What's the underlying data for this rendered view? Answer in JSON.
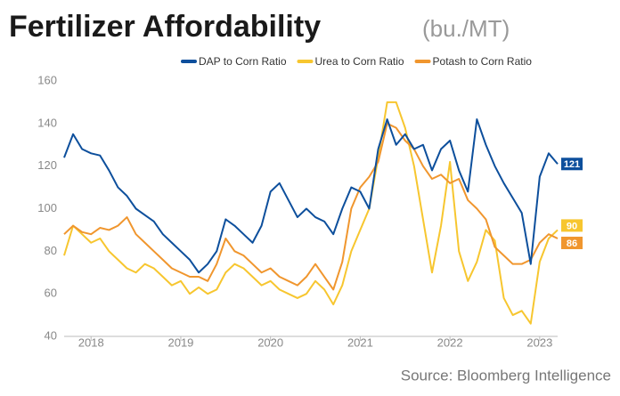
{
  "chart_data": {
    "type": "line",
    "title": "Fertilizer Affordability",
    "subtitle": "(bu./MT)",
    "source": "Source: Bloomberg Intelligence",
    "x": [
      2017.7,
      2017.8,
      2017.9,
      2018.0,
      2018.1,
      2018.2,
      2018.3,
      2018.4,
      2018.5,
      2018.6,
      2018.7,
      2018.8,
      2018.9,
      2019.0,
      2019.1,
      2019.2,
      2019.3,
      2019.4,
      2019.5,
      2019.6,
      2019.7,
      2019.8,
      2019.9,
      2020.0,
      2020.1,
      2020.2,
      2020.3,
      2020.4,
      2020.5,
      2020.6,
      2020.7,
      2020.8,
      2020.9,
      2021.0,
      2021.1,
      2021.2,
      2021.3,
      2021.4,
      2021.5,
      2021.6,
      2021.7,
      2021.8,
      2021.9,
      2022.0,
      2022.1,
      2022.2,
      2022.3,
      2022.4,
      2022.5,
      2022.6,
      2022.7,
      2022.8,
      2022.9,
      2023.0,
      2023.1,
      2023.2
    ],
    "series": [
      {
        "name": "DAP to Corn Ratio",
        "color": "#0d4f9c",
        "values": [
          124,
          135,
          128,
          126,
          125,
          118,
          110,
          106,
          100,
          97,
          94,
          88,
          84,
          80,
          76,
          70,
          74,
          80,
          95,
          92,
          88,
          84,
          92,
          108,
          112,
          104,
          96,
          100,
          96,
          94,
          88,
          100,
          110,
          108,
          100,
          128,
          142,
          130,
          135,
          128,
          130,
          118,
          128,
          132,
          118,
          108,
          142,
          130,
          120,
          112,
          105,
          98,
          74,
          115,
          126,
          121
        ]
      },
      {
        "name": "Urea to Corn Ratio",
        "color": "#f7c62f",
        "values": [
          78,
          92,
          88,
          84,
          86,
          80,
          76,
          72,
          70,
          74,
          72,
          68,
          64,
          66,
          60,
          63,
          60,
          62,
          70,
          74,
          72,
          68,
          64,
          66,
          62,
          60,
          58,
          60,
          66,
          62,
          55,
          64,
          80,
          90,
          100,
          124,
          150,
          150,
          138,
          120,
          95,
          70,
          92,
          122,
          80,
          66,
          75,
          90,
          85,
          58,
          50,
          52,
          46,
          75,
          86,
          90
        ]
      },
      {
        "name": "Potash to Corn Ratio",
        "color": "#f0962e",
        "values": [
          88,
          92,
          89,
          88,
          91,
          90,
          92,
          96,
          88,
          84,
          80,
          76,
          72,
          70,
          68,
          68,
          66,
          74,
          86,
          80,
          78,
          74,
          70,
          72,
          68,
          66,
          64,
          68,
          74,
          68,
          62,
          75,
          100,
          110,
          115,
          122,
          140,
          138,
          132,
          128,
          120,
          114,
          116,
          112,
          114,
          104,
          100,
          95,
          82,
          78,
          74,
          74,
          76,
          84,
          88,
          86
        ]
      }
    ],
    "xlim": [
      2017.7,
      2023.2
    ],
    "xticks": [
      2018,
      2019,
      2020,
      2021,
      2022,
      2023
    ],
    "ylim": [
      40,
      160
    ],
    "yticks": [
      40,
      60,
      80,
      100,
      120,
      140,
      160
    ]
  }
}
